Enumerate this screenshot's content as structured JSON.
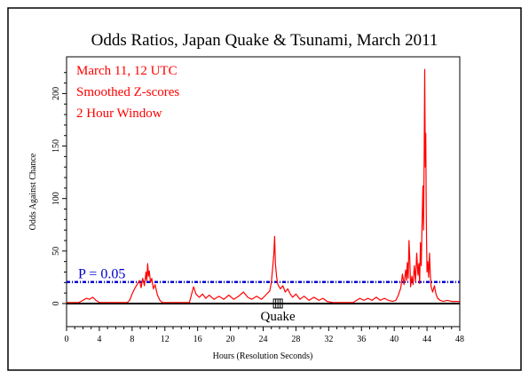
{
  "chart_data": {
    "type": "line",
    "title": "Odds Ratios, Japan Quake & Tsunami, March 2011",
    "annotations": [
      "March 11, 12 UTC",
      "Smoothed Z-scores",
      "2 Hour Window"
    ],
    "xlabel": "Hours (Resolution Seconds)",
    "ylabel": "Odds Against Chance",
    "xlim": [
      0,
      48
    ],
    "ylim": [
      -22,
      235
    ],
    "x_ticks": [
      0,
      4,
      8,
      12,
      16,
      20,
      24,
      28,
      32,
      36,
      40,
      44,
      48
    ],
    "y_ticks": [
      0,
      50,
      100,
      150,
      200
    ],
    "grid": false,
    "legend": "none",
    "reference_line": {
      "label": "P = 0.05",
      "value": 20.5
    },
    "event_marker": {
      "label": "Quake",
      "x": 25.8
    },
    "series": [
      {
        "color": "#ff0000",
        "points": [
          [
            0,
            1
          ],
          [
            1.5,
            1
          ],
          [
            2,
            3
          ],
          [
            2.4,
            5
          ],
          [
            2.8,
            4
          ],
          [
            3.2,
            6
          ],
          [
            3.6,
            3
          ],
          [
            4,
            1
          ],
          [
            7.4,
            1
          ],
          [
            7.7,
            3
          ],
          [
            8,
            9
          ],
          [
            8.3,
            14
          ],
          [
            8.6,
            18
          ],
          [
            8.9,
            22
          ],
          [
            9.1,
            15
          ],
          [
            9.3,
            24
          ],
          [
            9.5,
            17
          ],
          [
            9.7,
            30
          ],
          [
            9.8,
            22
          ],
          [
            9.9,
            38
          ],
          [
            10.0,
            26
          ],
          [
            10.1,
            31
          ],
          [
            10.25,
            20
          ],
          [
            10.4,
            24
          ],
          [
            10.6,
            14
          ],
          [
            10.8,
            18
          ],
          [
            11.1,
            8
          ],
          [
            11.4,
            3
          ],
          [
            11.7,
            1
          ],
          [
            15,
            1
          ],
          [
            15.3,
            10
          ],
          [
            15.5,
            16
          ],
          [
            15.8,
            9
          ],
          [
            16.2,
            6
          ],
          [
            16.6,
            9
          ],
          [
            17.0,
            5
          ],
          [
            17.4,
            8
          ],
          [
            18.0,
            4
          ],
          [
            18.6,
            7
          ],
          [
            19.2,
            4
          ],
          [
            19.8,
            8
          ],
          [
            20.4,
            4
          ],
          [
            21.0,
            7
          ],
          [
            21.6,
            11
          ],
          [
            22.1,
            6
          ],
          [
            22.6,
            4
          ],
          [
            23.2,
            7
          ],
          [
            23.8,
            4
          ],
          [
            24.3,
            8
          ],
          [
            24.8,
            12
          ],
          [
            25.0,
            20
          ],
          [
            25.15,
            33
          ],
          [
            25.3,
            47
          ],
          [
            25.4,
            64
          ],
          [
            25.5,
            38
          ],
          [
            25.65,
            25
          ],
          [
            25.8,
            18
          ],
          [
            26.1,
            14
          ],
          [
            26.4,
            17
          ],
          [
            26.7,
            11
          ],
          [
            27.0,
            14
          ],
          [
            27.3,
            9
          ],
          [
            27.6,
            6
          ],
          [
            28.0,
            9
          ],
          [
            28.5,
            4
          ],
          [
            29.0,
            7
          ],
          [
            29.6,
            3
          ],
          [
            30.2,
            6
          ],
          [
            30.8,
            3
          ],
          [
            31.3,
            5
          ],
          [
            31.8,
            2
          ],
          [
            32.5,
            1
          ],
          [
            35.0,
            1
          ],
          [
            35.4,
            3
          ],
          [
            35.8,
            5
          ],
          [
            36.3,
            3
          ],
          [
            36.8,
            5
          ],
          [
            37.3,
            3
          ],
          [
            37.8,
            6
          ],
          [
            38.3,
            3
          ],
          [
            38.8,
            5
          ],
          [
            39.3,
            3
          ],
          [
            39.8,
            2
          ],
          [
            40.2,
            3
          ],
          [
            40.5,
            8
          ],
          [
            40.8,
            15
          ],
          [
            41.0,
            28
          ],
          [
            41.2,
            18
          ],
          [
            41.4,
            32
          ],
          [
            41.5,
            22
          ],
          [
            41.6,
            39
          ],
          [
            41.7,
            24
          ],
          [
            41.8,
            60
          ],
          [
            41.9,
            42
          ],
          [
            42.0,
            16
          ],
          [
            42.15,
            26
          ],
          [
            42.3,
            18
          ],
          [
            42.45,
            36
          ],
          [
            42.6,
            21
          ],
          [
            42.75,
            48
          ],
          [
            42.9,
            27
          ],
          [
            43.0,
            38
          ],
          [
            43.1,
            19
          ],
          [
            43.2,
            58
          ],
          [
            43.3,
            36
          ],
          [
            43.4,
            75
          ],
          [
            43.5,
            112
          ],
          [
            43.58,
            70
          ],
          [
            43.65,
            140
          ],
          [
            43.72,
            223
          ],
          [
            43.8,
            130
          ],
          [
            43.85,
            162
          ],
          [
            43.9,
            90
          ],
          [
            43.95,
            60
          ],
          [
            44.0,
            30
          ],
          [
            44.1,
            40
          ],
          [
            44.2,
            25
          ],
          [
            44.3,
            48
          ],
          [
            44.4,
            28
          ],
          [
            44.5,
            16
          ],
          [
            44.7,
            11
          ],
          [
            44.9,
            17
          ],
          [
            45.1,
            9
          ],
          [
            45.3,
            5
          ],
          [
            45.6,
            3
          ],
          [
            46.0,
            2
          ],
          [
            46.5,
            3
          ],
          [
            47.0,
            2
          ],
          [
            48,
            2
          ]
        ]
      }
    ]
  }
}
